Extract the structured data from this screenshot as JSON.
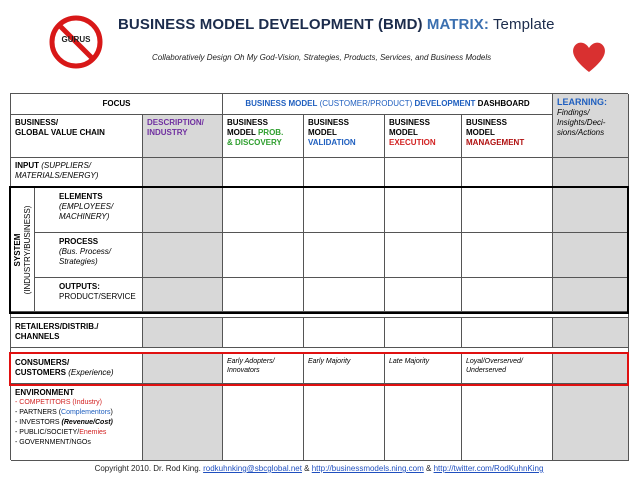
{
  "logo": {
    "gurus_label": "GURUS",
    "heart_icon": "heart-icon"
  },
  "header": {
    "title_part1": "BUSINESS MODEL DEVELOPMENT (BMD) ",
    "title_part2": "MATRIX:",
    "title_part3": " Template",
    "subtitle": "Collaboratively Design Oh My God-Vision, Strategies, Products, Services, and Business Models"
  },
  "table": {
    "focus": "FOCUS",
    "dashboard": {
      "a": "BUSINESS MODEL",
      "b": " (CUSTOMER/PRODUCT) ",
      "c": "DEVELOPMENT",
      "d": " DASHBOARD"
    },
    "learning": {
      "title": "LEARNING:",
      "body": "Findings/ Insights/Deci-sions/Actions"
    },
    "col_headers": {
      "business_vc_1": "BUSINESS/",
      "business_vc_2": "GLOBAL VALUE CHAIN",
      "desc_1": "DESCRIPTION/",
      "desc_2": "INDUSTRY"
    },
    "stages": [
      {
        "l1": "BUSINESS",
        "l2": "MODEL  ",
        "l2c": "PROB.",
        "l3": "& DISCOVERY"
      },
      {
        "l1": "BUSINESS",
        "l2": "MODEL",
        "l3": "VALIDATION"
      },
      {
        "l1": "BUSINESS",
        "l2": "MODEL",
        "l3": "EXECUTION"
      },
      {
        "l1": "BUSINESS",
        "l2": "MODEL",
        "l3": "MANAGEMENT"
      }
    ],
    "input": {
      "a": "INPUT",
      "b": " (SUPPLIERS/",
      "c": "MATERIALS/ENERGY)"
    },
    "system": {
      "l1": "SYSTEM",
      "l2": "(INDUSTRY/BUSINESS)"
    },
    "elements": {
      "title": "ELEMENTS",
      "l1": "(EMPLOYEES/",
      "l2": "MACHINERY)"
    },
    "process": {
      "title": "PROCESS",
      "l1": "(Bus. Process/",
      "l2": "Strategies)"
    },
    "outputs": {
      "title": "OUTPUTS:",
      "l1": "PRODUCT/SERVICE"
    },
    "retailers": {
      "l1": "RETAILERS/DISTRIB./",
      "l2": "CHANNELS"
    },
    "consumers": {
      "l1": "CONSUMERS/",
      "l2": "CUSTOMERS",
      "l2b": " (Experience)",
      "early_1": "Early Adopters/",
      "early_2": "Innovators",
      "majority": "Early Majority",
      "late": "Late Majority",
      "loyal_1": "Loyal/Overserved/",
      "loyal_2": "Underserved"
    },
    "environment": {
      "title": "ENVIRONMENT",
      "competitors": "- COMPETITORS (Industry)",
      "partners_a": "- PARTNERS (",
      "partners_b": "Complementors",
      "partners_c": ")",
      "investors_a": "- INVESTORS ",
      "investors_b": "(Revenue/Cost)",
      "public_a": "- PUBLIC/SOCIETY/",
      "public_b": "Enemies",
      "gov": "- GOVERNMENT/NGOs"
    }
  },
  "footer": {
    "prefix": "Copyright 2010. Dr. Rod King. ",
    "email": "rodkuhnking@sbcglobal.net",
    "amp1": " & ",
    "url1": "http://businessmodels.ning.com",
    "amp2": " & ",
    "url2": "http://twitter.com/RodKuhnKing"
  },
  "colors": {
    "title": "#1c2c4c",
    "matrix_blue": "#3a6fb0",
    "blue_text": "#1f5fbf",
    "purple_text": "#7030a0",
    "green_text": "#2e9e2e",
    "red_text": "#d22222",
    "highlight_red": "#e01010",
    "grey_cell": "#d8d8d8",
    "heart": "#d93030"
  }
}
